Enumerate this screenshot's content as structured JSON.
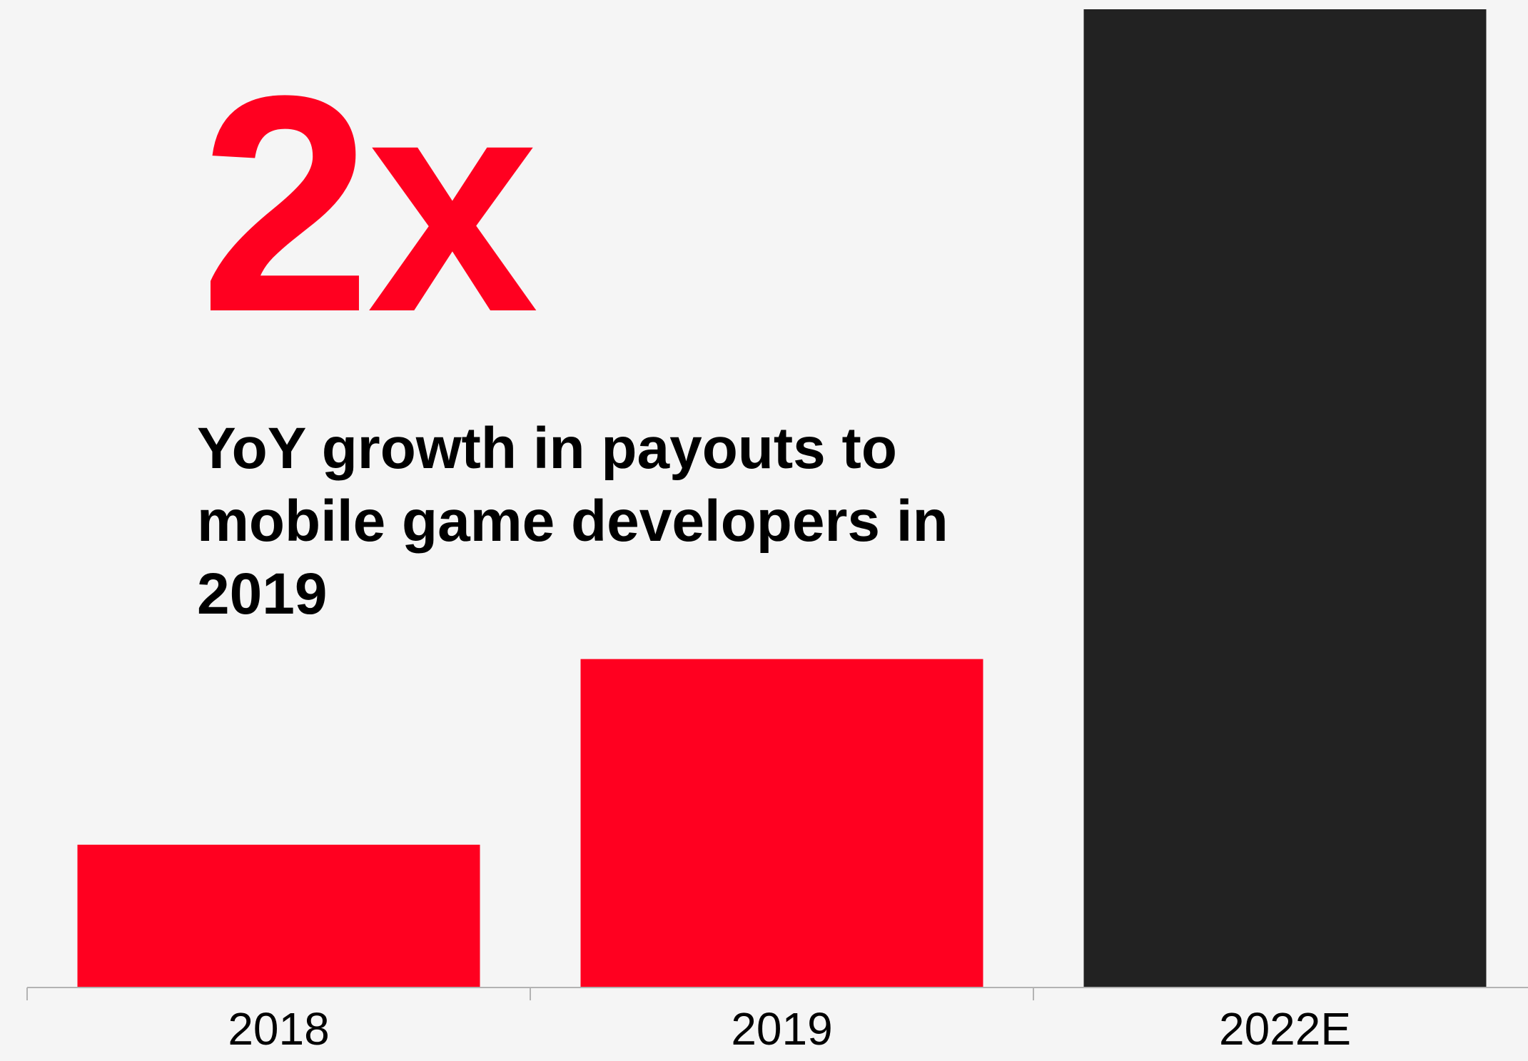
{
  "headline": {
    "text": "2x",
    "color": "#ff0020"
  },
  "subtitle": {
    "text": "YoY growth in payouts to mobile game developers in 2019"
  },
  "chart_data": {
    "type": "bar",
    "categories": [
      "2018",
      "2019",
      "2022E"
    ],
    "values": [
      20,
      46,
      137
    ],
    "colors": [
      "#ff0020",
      "#ff0020",
      "#222222"
    ],
    "title": "",
    "xlabel": "",
    "ylabel": "",
    "ylim": [
      0,
      137
    ],
    "grid": false,
    "legend": "none"
  }
}
